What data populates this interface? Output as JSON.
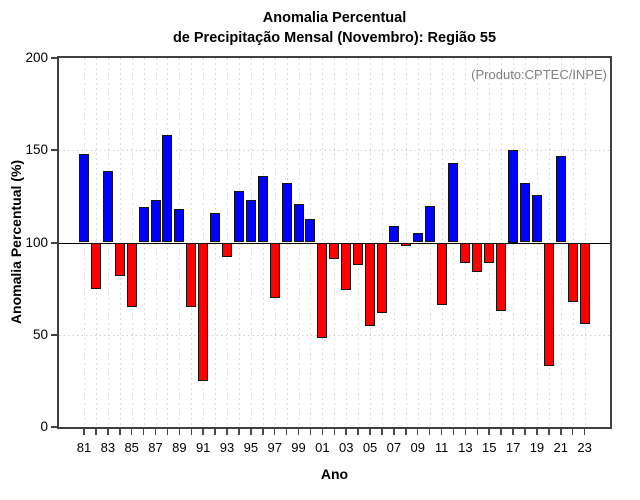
{
  "title": {
    "line1": "Anomalia Percentual",
    "line2": "de Precipitação Mensal (Novembro): Região 55"
  },
  "y_axis_title": "Anomalia Percentual (%)",
  "x_axis_title": "Ano",
  "annotation": "(Produto:CPTEC/INPE)",
  "colors": {
    "bar_above_baseline": "#0000ff",
    "bar_below_baseline": "#ff0000",
    "bar_border": "#141414",
    "grid": "#d9d9d9",
    "baseline": "#000000",
    "annotation_text": "#808080",
    "axis_frame": "#3f3f3f"
  },
  "chart_data": {
    "type": "bar",
    "title": "Anomalia Percentual de Precipitação Mensal (Novembro): Região 55",
    "xlabel": "Ano",
    "ylabel": "Anomalia Percentual (%)",
    "ylim": [
      0,
      200
    ],
    "yticks": [
      0,
      50,
      100,
      150,
      200
    ],
    "hgrid_values": [
      50,
      150
    ],
    "baseline": 100,
    "grid": true,
    "legend": "none",
    "bar_rule": "bars drawn from baseline 100; value >= 100 blue upward, value < 100 red downward",
    "years": [
      1981,
      1982,
      1983,
      1984,
      1985,
      1986,
      1987,
      1988,
      1989,
      1990,
      1991,
      1992,
      1993,
      1994,
      1995,
      1996,
      1997,
      1998,
      1999,
      2000,
      2001,
      2002,
      2003,
      2004,
      2005,
      2006,
      2007,
      2008,
      2009,
      2010,
      2011,
      2012,
      2013,
      2014,
      2015,
      2016,
      2017,
      2018,
      2019,
      2020,
      2021,
      2022,
      2023
    ],
    "x_tick_labels": [
      "81",
      "83",
      "85",
      "87",
      "89",
      "91",
      "93",
      "95",
      "97",
      "99",
      "01",
      "03",
      "05",
      "07",
      "09",
      "11",
      "13",
      "15",
      "17",
      "19",
      "21",
      "23"
    ],
    "values": [
      148,
      75,
      139,
      82,
      65,
      119,
      123,
      158,
      118,
      65,
      25,
      116,
      92,
      128,
      123,
      136,
      70,
      132,
      121,
      113,
      48,
      91,
      74,
      88,
      55,
      62,
      109,
      98,
      105,
      120,
      66,
      143,
      89,
      84,
      89,
      63,
      150,
      132,
      126,
      33,
      147,
      68,
      56
    ]
  }
}
